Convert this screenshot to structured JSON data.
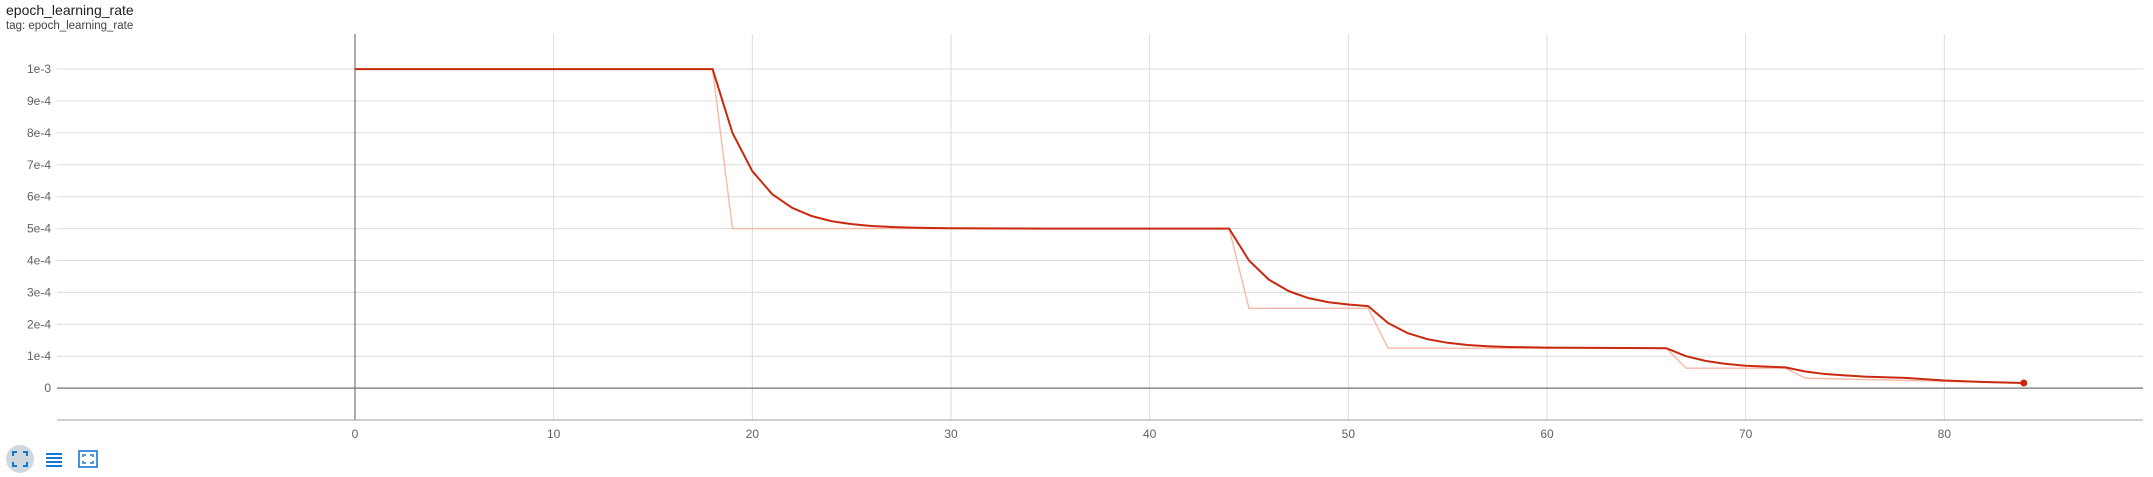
{
  "card": {
    "title": "epoch_learning_rate",
    "tag": "tag: epoch_learning_rate"
  },
  "toolbar": {
    "buttons": [
      {
        "name": "fit-domain-button",
        "icon": "fullscreen-icon",
        "active": true
      },
      {
        "name": "toggle-log-button",
        "icon": "list-icon",
        "active": false
      },
      {
        "name": "zoom-button",
        "icon": "zoom-frame-icon",
        "active": false
      }
    ]
  },
  "colors": {
    "smoothed_line": "#c8290f",
    "raw_line": "#f8b8a8",
    "grid": "#dcdcdc",
    "axis": "#757575",
    "tick_text": "#616161",
    "toolbar_icon": "#1976d2"
  },
  "chart_data": {
    "type": "line",
    "title": "epoch_learning_rate",
    "xlabel": "",
    "ylabel": "",
    "xlim": [
      -15,
      90
    ],
    "ylim": [
      -0.0001,
      0.00111
    ],
    "x_ticks": [
      0,
      10,
      20,
      30,
      40,
      50,
      60,
      70,
      80
    ],
    "x_tick_labels": [
      "0",
      "10",
      "20",
      "30",
      "40",
      "50",
      "60",
      "70",
      "80"
    ],
    "y_ticks": [
      0,
      0.0001,
      0.0002,
      0.0003,
      0.0004,
      0.0005,
      0.0006,
      0.0007,
      0.0008,
      0.0009,
      0.001
    ],
    "y_tick_labels": [
      "0",
      "1e-4",
      "2e-4",
      "3e-4",
      "4e-4",
      "5e-4",
      "6e-4",
      "7e-4",
      "8e-4",
      "9e-4",
      "1e-3"
    ],
    "grid": true,
    "series": [
      {
        "role": "raw",
        "x": [
          0,
          18,
          19,
          44,
          45,
          51,
          52,
          66,
          67,
          72,
          73,
          84
        ],
        "values": [
          0.001,
          0.001,
          0.0005,
          0.0005,
          0.00025,
          0.00025,
          0.000125,
          0.000125,
          6.25e-05,
          6.25e-05,
          3.125e-05,
          1.5625e-05
        ]
      },
      {
        "role": "smoothed",
        "x": [
          0,
          18,
          19,
          20,
          21,
          22,
          23,
          24,
          25,
          26,
          27,
          28,
          29,
          30,
          35,
          44,
          45,
          46,
          47,
          48,
          49,
          50,
          51,
          52,
          53,
          54,
          55,
          56,
          57,
          58,
          60,
          66,
          67,
          68,
          69,
          70,
          72,
          73,
          74,
          75,
          76,
          78,
          80,
          82,
          84
        ],
        "values": [
          0.001,
          0.001,
          0.0008,
          0.00068,
          0.000608,
          0.000565,
          0.000539,
          0.000523,
          0.000514,
          0.000508,
          0.000505,
          0.000503,
          0.000502,
          0.000501,
          0.0005,
          0.0005,
          0.0004,
          0.00034,
          0.000304,
          0.000282,
          0.000269,
          0.000262,
          0.000257,
          0.000204,
          0.000172,
          0.000153,
          0.000142,
          0.000135,
          0.000131,
          0.000129,
          0.000127,
          0.000125,
          0.0001,
          8.5e-05,
          7.6e-05,
          7e-05,
          6.5e-05,
          5.2e-05,
          4.4e-05,
          4e-05,
          3.6e-05,
          3.2e-05,
          2.4e-05,
          1.9e-05,
          1.6e-05
        ]
      }
    ]
  }
}
